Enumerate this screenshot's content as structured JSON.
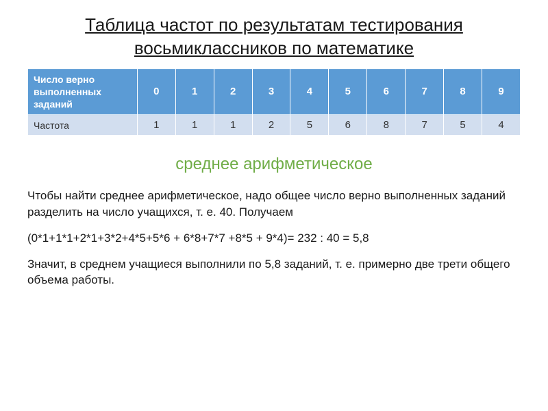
{
  "title": "Таблица частот по результатам тестирования восьмиклассников по математике",
  "table": {
    "type": "table",
    "header_label": "Число верно выполненных заданий",
    "row_label": "Частота",
    "columns": [
      "0",
      "1",
      "2",
      "3",
      "4",
      "5",
      "6",
      "7",
      "8",
      "9"
    ],
    "values": [
      "1",
      "1",
      "1",
      "2",
      "5",
      "6",
      "8",
      "7",
      "5",
      "4"
    ],
    "header_bg": "#5b9bd5",
    "header_text_color": "#ffffff",
    "row_bg": "#d2deef",
    "row_text_color": "#333333",
    "border_color": "#ffffff",
    "font_size": 15
  },
  "subtitle": "среднее арифметическое",
  "subtitle_color": "#70ad47",
  "paragraph1": "Чтобы найти среднее арифметическое, надо общее число верно выполненных заданий разделить на число учащихся, т. е. 40. Получаем",
  "formula": "(0*1+1*1+2*1+3*2+4*5+5*6 + 6*8+7*7 +8*5 + 9*4)= 232 : 40 = 5,8",
  "paragraph2": "Значит, в среднем учащиеся выполнили по 5,8 заданий, т. е. примерно две трети общего объема работы.",
  "background_color": "#ffffff",
  "title_fontsize": 26,
  "body_fontsize": 17
}
